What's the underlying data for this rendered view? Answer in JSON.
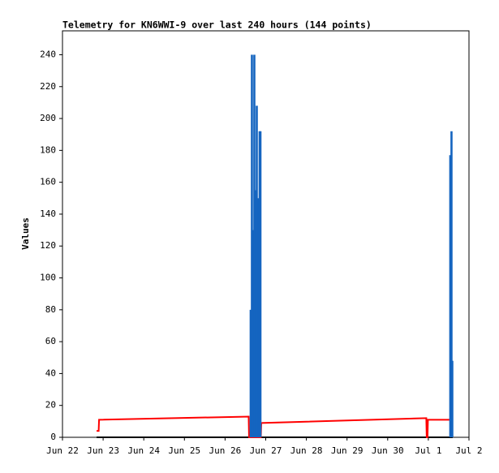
{
  "chart_data": {
    "type": "line",
    "title": "Telemetry for KN6WWI-9 over last 240 hours (144 points)",
    "y_label": "Values",
    "xlim": [
      0,
      10
    ],
    "xticks": [
      {
        "value": 0,
        "label": "Jun 22"
      },
      {
        "value": 1,
        "label": "Jun 23"
      },
      {
        "value": 2,
        "label": "Jun 24"
      },
      {
        "value": 3,
        "label": "Jun 25"
      },
      {
        "value": 4,
        "label": "Jun 26"
      },
      {
        "value": 5,
        "label": "Jun 27"
      },
      {
        "value": 6,
        "label": "Jun 28"
      },
      {
        "value": 7,
        "label": "Jun 29"
      },
      {
        "value": 8,
        "label": "Jun 30"
      },
      {
        "value": 9,
        "label": "Jul 1"
      },
      {
        "value": 10,
        "label": "Jul 2"
      }
    ],
    "ylim": [
      0,
      255
    ],
    "yticks": [
      0,
      20,
      40,
      60,
      80,
      100,
      120,
      140,
      160,
      180,
      200,
      220,
      240
    ],
    "grid": false,
    "series": [
      {
        "color": "#000000",
        "style": "line",
        "x": [
          0.84,
          9.6
        ],
        "values": [
          0,
          0
        ]
      },
      {
        "color": "#ff0000",
        "style": "line",
        "x": [
          0.84,
          0.89,
          0.9,
          4.58,
          4.59,
          4.88,
          4.89,
          8.95,
          8.96,
          8.98,
          8.99,
          9.54
        ],
        "values": [
          4,
          4,
          11,
          13,
          0,
          0,
          9,
          12,
          0,
          0,
          11,
          11
        ]
      },
      {
        "color": "#1565c0",
        "style": "impulse",
        "x": [
          4.63,
          4.66,
          4.68,
          4.7,
          4.72,
          4.74,
          4.76,
          4.78,
          4.8,
          4.82,
          4.85,
          4.87,
          9.54,
          9.57,
          9.59
        ],
        "values": [
          80,
          240,
          120,
          130,
          240,
          155,
          150,
          208,
          128,
          150,
          192,
          192,
          177,
          192,
          48
        ]
      }
    ]
  }
}
